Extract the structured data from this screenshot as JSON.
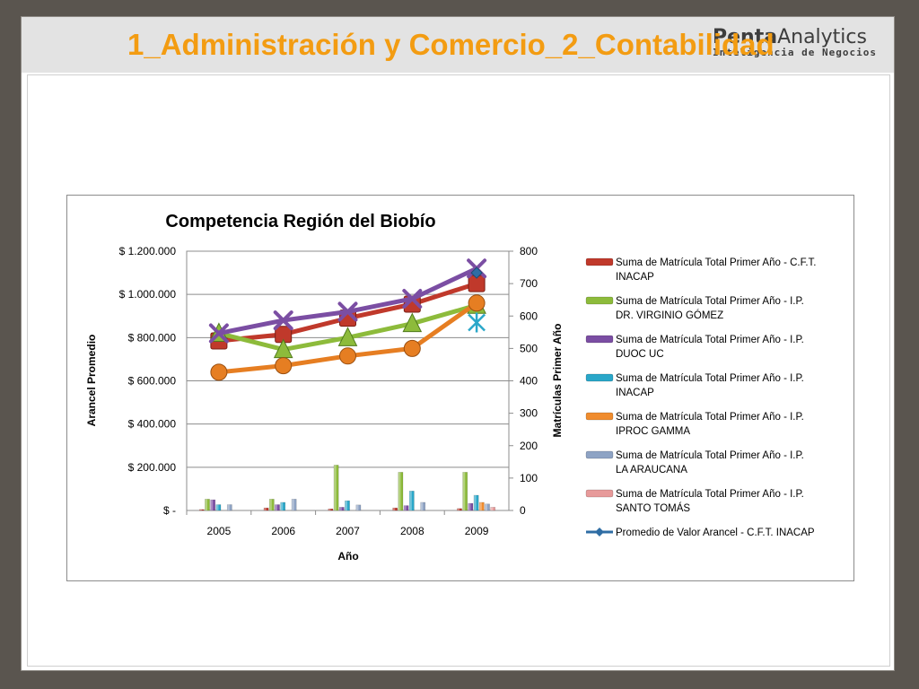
{
  "slide": {
    "title": "1_Administración y Comercio_2_Contabilidad",
    "logo_text_prefix": "Penta",
    "logo_text_suffix": "Analytics",
    "logo_tagline": "Inteligencia de Negocios"
  },
  "chart_data": {
    "type": "bar+line",
    "title": "Competencia Región del Biobío",
    "xlabel": "Año",
    "ylabel": "Arancel Promedio",
    "y2label": "Matrículas Primer Año",
    "categories": [
      "2005",
      "2006",
      "2007",
      "2008",
      "2009"
    ],
    "y_left_ticks": [
      "$ -",
      "$ 200.000",
      "$ 400.000",
      "$ 600.000",
      "$ 800.000",
      "$ 1.000.000",
      "$ 1.200.000"
    ],
    "ylim_left": [
      0,
      1200000
    ],
    "y_right_ticks": [
      "0",
      "100",
      "200",
      "300",
      "400",
      "500",
      "600",
      "700",
      "800"
    ],
    "ylim_right": [
      0,
      800
    ],
    "grid": true,
    "legend_position": "right",
    "bar_series": [
      {
        "name": "Suma de Matrícula Total Primer Año - C.F.T. INACAP",
        "color": "#c0392b",
        "values": [
          3,
          8,
          5,
          8,
          6
        ]
      },
      {
        "name": "Suma de Matrícula Total Primer Año - I.P. DR. VIRGINIO GÓMEZ",
        "color": "#8dbb3b",
        "values": [
          35,
          35,
          140,
          118,
          118
        ]
      },
      {
        "name": "Suma de Matrícula Total Primer Año - I.P. DUOC UC",
        "color": "#7b4ea3",
        "values": [
          33,
          18,
          10,
          15,
          22
        ]
      },
      {
        "name": "Suma de Matrícula Total Primer Año - I.P. INACAP",
        "color": "#2aa7c9",
        "values": [
          18,
          25,
          30,
          60,
          47
        ]
      },
      {
        "name": "Suma de Matrícula Total Primer Año - I.P. IPROC GAMMA",
        "color": "#f08c2e",
        "values": [
          0,
          0,
          0,
          0,
          25
        ]
      },
      {
        "name": "Suma de Matrícula Total Primer Año - I.P. LA ARAUCANA",
        "color": "#8ea3c4",
        "values": [
          18,
          35,
          17,
          25,
          20
        ]
      },
      {
        "name": "Suma de Matrícula Total Primer Año - I.P. SANTO TOMÁS",
        "color": "#e79a9a",
        "values": [
          0,
          0,
          0,
          0,
          10
        ]
      }
    ],
    "line_series": [
      {
        "name": "",
        "color": "#c0392b",
        "marker": "square",
        "values": [
          785000,
          815000,
          890000,
          955000,
          1050000
        ]
      },
      {
        "name": "",
        "color": "#8dbb3b",
        "marker": "triangle",
        "values": [
          820000,
          745000,
          800000,
          865000,
          950000
        ]
      },
      {
        "name": "",
        "color": "#7b4ea3",
        "marker": "x",
        "values": [
          820000,
          880000,
          920000,
          980000,
          1120000
        ]
      },
      {
        "name": "",
        "color": "#2aa7c9",
        "marker": "star",
        "values": [
          null,
          null,
          null,
          null,
          870000
        ]
      },
      {
        "name": "",
        "color": "#e67e22",
        "marker": "circle",
        "values": [
          640000,
          670000,
          715000,
          750000,
          960000
        ]
      },
      {
        "name": "Promedio de Valor Arancel  - C.F.T. INACAP",
        "color": "#2e6da4",
        "marker": "diamond",
        "values": [
          null,
          null,
          null,
          null,
          1100000
        ]
      }
    ],
    "legend_entries": [
      {
        "line1": "Suma de Matrícula Total Primer Año - C.F.T.",
        "line2": "INACAP",
        "color": "#c0392b",
        "kind": "bar"
      },
      {
        "line1": "Suma de Matrícula Total Primer Año - I.P.",
        "line2": "DR. VIRGINIO GÓMEZ",
        "color": "#8dbb3b",
        "kind": "bar"
      },
      {
        "line1": "Suma de Matrícula Total Primer Año - I.P.",
        "line2": "DUOC UC",
        "color": "#7b4ea3",
        "kind": "bar"
      },
      {
        "line1": "Suma de Matrícula Total Primer Año - I.P.",
        "line2": "INACAP",
        "color": "#2aa7c9",
        "kind": "bar"
      },
      {
        "line1": "Suma de Matrícula Total Primer Año - I.P.",
        "line2": "IPROC GAMMA",
        "color": "#f08c2e",
        "kind": "bar"
      },
      {
        "line1": "Suma de Matrícula Total Primer Año - I.P.",
        "line2": "LA ARAUCANA",
        "color": "#8ea3c4",
        "kind": "bar"
      },
      {
        "line1": "Suma de Matrícula Total Primer Año - I.P.",
        "line2": "SANTO TOMÁS",
        "color": "#e79a9a",
        "kind": "bar"
      },
      {
        "line1": "Promedio de Valor Arancel  - C.F.T. INACAP",
        "line2": "",
        "color": "#2e6da4",
        "kind": "line"
      }
    ]
  }
}
